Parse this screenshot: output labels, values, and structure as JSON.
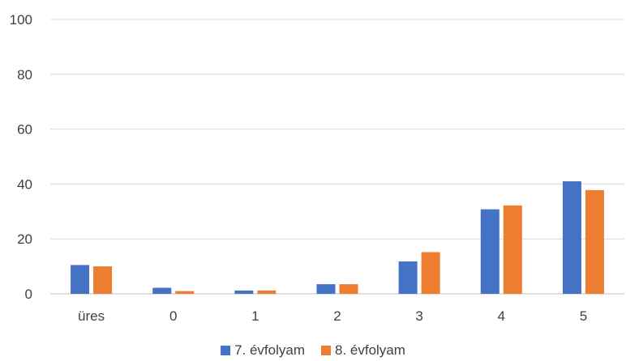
{
  "chart_data": {
    "type": "bar",
    "title": "",
    "xlabel": "",
    "ylabel": "",
    "categories": [
      "üres",
      "0",
      "1",
      "2",
      "3",
      "4",
      "5"
    ],
    "series": [
      {
        "name": "7. évfolyam",
        "values": [
          10.5,
          2.2,
          1.2,
          3.5,
          11.8,
          30.8,
          41.0
        ],
        "color": "#4472c4"
      },
      {
        "name": "8. évfolyam",
        "values": [
          10.0,
          1.0,
          1.2,
          3.5,
          15.2,
          32.2,
          37.8
        ],
        "color": "#ed7d31"
      }
    ],
    "ylim": [
      0,
      100
    ],
    "yticks": [
      "0",
      "20",
      "40",
      "60",
      "80",
      "100"
    ],
    "ytick_values": [
      0,
      20,
      40,
      60,
      80,
      100
    ],
    "grid": true,
    "legend_position": "bottom-center"
  }
}
